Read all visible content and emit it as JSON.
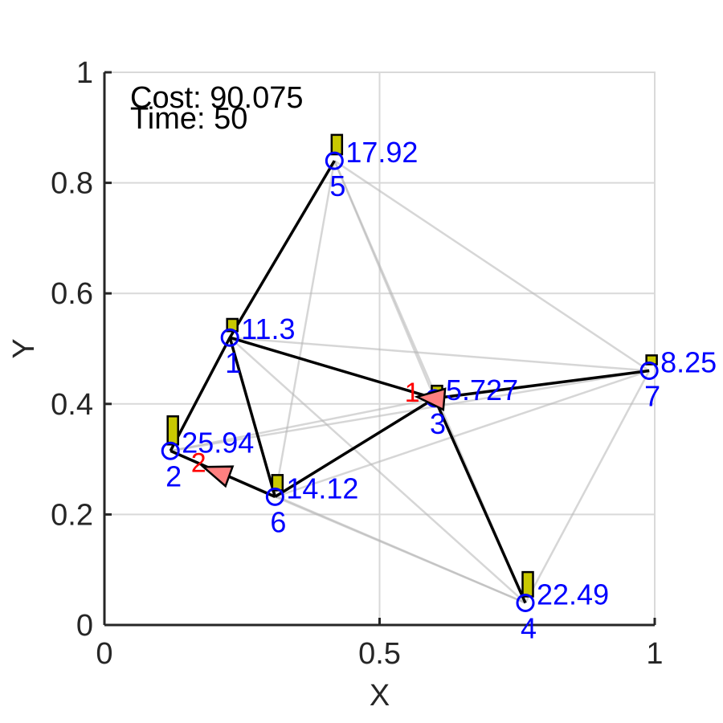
{
  "info": {
    "cost": "Cost: 90.075",
    "time": "Time: 50"
  },
  "colors": {
    "node": "#0000ff",
    "label": "#0000ff",
    "agent": "#ff0000",
    "agent_fill": "#ff8080",
    "bar_fill": "#c8c800",
    "route": "#000000",
    "edge": "#b4b4b4",
    "grid": "#d9d9d9",
    "axis": "#262626"
  },
  "chart_data": {
    "type": "scatter",
    "title": "",
    "xlabel": "X",
    "ylabel": "Y",
    "xlim": [
      0,
      1
    ],
    "ylim": [
      0,
      1
    ],
    "xticks": [
      0,
      0.5,
      1
    ],
    "xtick_labels": [
      "0",
      "0.5",
      "1"
    ],
    "yticks": [
      0,
      0.2,
      0.4,
      0.6,
      0.8,
      1
    ],
    "ytick_labels": [
      "0",
      "0.2",
      "0.4",
      "0.6",
      "0.8",
      "1"
    ],
    "grid": true,
    "nodes": [
      {
        "id": "1",
        "x": 0.228,
        "y": 0.52,
        "value": 11.3,
        "value_label": "11.3"
      },
      {
        "id": "2",
        "x": 0.12,
        "y": 0.315,
        "value": 25.94,
        "value_label": "25.94"
      },
      {
        "id": "3",
        "x": 0.6,
        "y": 0.41,
        "value": 5.727,
        "value_label": "5.727"
      },
      {
        "id": "4",
        "x": 0.765,
        "y": 0.04,
        "value": 22.49,
        "value_label": "22.49"
      },
      {
        "id": "5",
        "x": 0.418,
        "y": 0.84,
        "value": 17.92,
        "value_label": "17.92"
      },
      {
        "id": "6",
        "x": 0.31,
        "y": 0.232,
        "value": 14.12,
        "value_label": "14.12"
      },
      {
        "id": "7",
        "x": 0.99,
        "y": 0.46,
        "value": 8.25,
        "value_label": "8.25"
      }
    ],
    "route_edges": [
      [
        "5",
        "1"
      ],
      [
        "1",
        "2"
      ],
      [
        "1",
        "6"
      ],
      [
        "1",
        "3"
      ],
      [
        "6",
        "3"
      ],
      [
        "3",
        "7"
      ],
      [
        "3",
        "4"
      ],
      [
        "2",
        "6"
      ]
    ],
    "background_edges": [
      [
        "5",
        "3"
      ],
      [
        "5",
        "4"
      ],
      [
        "5",
        "7"
      ],
      [
        "5",
        "6"
      ],
      [
        "1",
        "7"
      ],
      [
        "1",
        "4"
      ],
      [
        "2",
        "3"
      ],
      [
        "2",
        "7"
      ],
      [
        "2",
        "4"
      ],
      [
        "6",
        "4"
      ],
      [
        "6",
        "7"
      ],
      [
        "4",
        "7"
      ]
    ],
    "agents": [
      {
        "id": "1",
        "x": 0.6,
        "y": 0.41,
        "heading_deg": 175
      },
      {
        "id": "2",
        "x": 0.21,
        "y": 0.275,
        "heading_deg": 160
      }
    ]
  }
}
